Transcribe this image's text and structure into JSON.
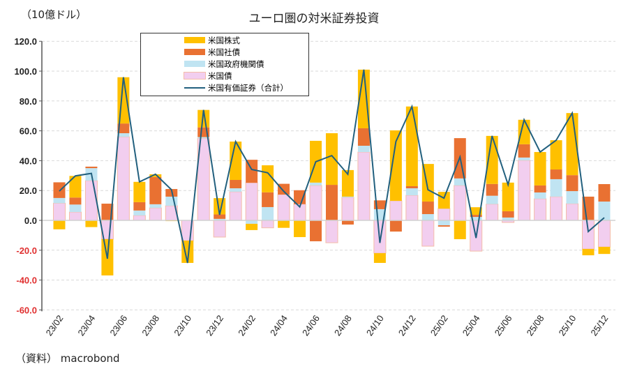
{
  "chart_data": {
    "type": "bar",
    "stacked": true,
    "title": "ユーロ圏の対米証券投資",
    "ylabel": "（10億ドル）",
    "source": "（資料） macrobond",
    "ylim": [
      -60,
      120
    ],
    "yticks": [
      "120.0",
      "100.0",
      "80.0",
      "60.0",
      "40.0",
      "20.0",
      "0.0",
      "-20.0",
      "-40.0",
      "-60.0"
    ],
    "ytick_values": [
      120,
      100,
      80,
      60,
      40,
      20,
      0,
      -20,
      -40,
      -60
    ],
    "grid": true,
    "legend_placement": "top-left-center",
    "categories": [
      "23/02",
      "23/03",
      "23/04",
      "23/05",
      "23/06",
      "23/07",
      "23/08",
      "23/09",
      "23/10",
      "23/11",
      "23/12",
      "24/01",
      "24/02",
      "24/03",
      "24/04",
      "24/05",
      "24/06",
      "24/07",
      "24/08",
      "24/09",
      "24/10",
      "24/11",
      "24/12",
      "25/01",
      "25/02",
      "25/03",
      "25/04",
      "25/05",
      "25/06",
      "25/07",
      "25/08",
      "25/09",
      "25/10",
      "25/11",
      "25/12"
    ],
    "xtick_labels": [
      "23/02",
      "23/04",
      "23/06",
      "23/08",
      "23/10",
      "23/12",
      "24/02",
      "24/04",
      "24/06",
      "24/08",
      "24/10",
      "24/12",
      "25/02",
      "25/04",
      "25/06",
      "25/08",
      "25/10",
      "25/12"
    ],
    "series": [
      {
        "name": "米国債",
        "kind": "bar",
        "color": "#F2CEEF",
        "values": [
          11.5,
          5.6,
          26.6,
          -12.6,
          56,
          3.3,
          8.4,
          9.8,
          -13.6,
          55,
          -11.2,
          19.2,
          25.2,
          -5,
          17.3,
          10.9,
          23.4,
          -15,
          15.4,
          45.8,
          -22,
          13.1,
          16.8,
          -17.3,
          7.9,
          23.4,
          -20.6,
          10.9,
          -1.4,
          40.2,
          14.5,
          15.9,
          11.2,
          -19.2,
          -17.8
        ]
      },
      {
        "name": "米国政府機関債",
        "kind": "bar",
        "color": "#C0E4F2",
        "values": [
          3.5,
          5,
          8.4,
          0,
          2.4,
          3.3,
          2.4,
          6.1,
          0,
          0.8,
          1,
          2.3,
          -2.3,
          8.9,
          0,
          0,
          1.9,
          0,
          0.5,
          4.2,
          7.5,
          0,
          4.7,
          4.2,
          -3.3,
          4.7,
          2.3,
          5.6,
          1.9,
          1.9,
          4.2,
          11.7,
          8.4,
          0,
          12.6
        ]
      },
      {
        "name": "米国社債",
        "kind": "bar",
        "color": "#E97132",
        "values": [
          10.5,
          4.7,
          1,
          11.2,
          6.5,
          5.6,
          18.2,
          5.1,
          0,
          6.5,
          3,
          5.6,
          15.4,
          9.9,
          7.2,
          9.3,
          -14,
          23.8,
          -2.8,
          11.7,
          5.9,
          -7.5,
          1.4,
          8.4,
          -0.9,
          27,
          1.4,
          7.9,
          4.2,
          8.9,
          4.7,
          6.5,
          10.7,
          15.9,
          11.7
        ]
      },
      {
        "name": "米国株式",
        "kind": "bar",
        "color": "#FFC000",
        "values": [
          -6,
          14.5,
          -4.5,
          -24.3,
          31,
          13.6,
          1.9,
          -0.5,
          -14.9,
          11.7,
          10.9,
          25.7,
          -4.2,
          18.1,
          -5,
          -11.2,
          28,
          34.6,
          17.8,
          39.3,
          -6.5,
          47.2,
          53.4,
          25.2,
          11.2,
          -12.6,
          5.1,
          32.2,
          19.2,
          16.4,
          22.4,
          19.6,
          41.6,
          -4.2,
          -4.7
        ]
      },
      {
        "name": "米国有価証券（合計）",
        "kind": "line",
        "color": "#22607E",
        "values": [
          19.6,
          29.8,
          31.5,
          -25.7,
          95.9,
          25.8,
          30.9,
          20.5,
          -28.5,
          74,
          3.7,
          52.8,
          34.1,
          31.9,
          19.5,
          9,
          39.3,
          43.4,
          30.9,
          101,
          -15.1,
          52.8,
          76.3,
          20.5,
          14.9,
          42.5,
          -11.8,
          56.6,
          23.9,
          67.4,
          45.8,
          53.7,
          71.9,
          -7.5,
          1.8
        ]
      }
    ],
    "legend_order": [
      "米国株式",
      "米国社債",
      "米国政府機関債",
      "米国債",
      "米国有価証券（合計）"
    ]
  }
}
